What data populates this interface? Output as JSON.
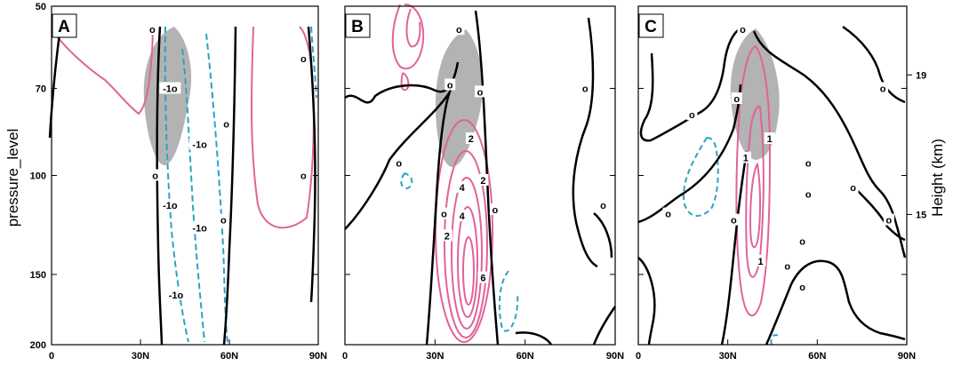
{
  "figure": {
    "ylabel_left": "pressure_level",
    "ylabel_right": "Height (km)"
  },
  "colors": {
    "zero_contour": "#000000",
    "positive_contour": "#e0639a",
    "negative_contour": "#2aa3c6",
    "shading": "#b3b3b3"
  },
  "chart_data": [
    {
      "type": "contour",
      "panel": "A",
      "x_ticks": [
        "0",
        "30N",
        "60N",
        "90N"
      ],
      "x_tick_values": [
        0,
        30,
        60,
        90
      ],
      "y_ticks": [
        "50",
        "70",
        "100",
        "150",
        "200"
      ],
      "y_tick_values": [
        50,
        70,
        100,
        150,
        200
      ],
      "xlim": [
        0,
        90
      ],
      "ylim": [
        200,
        50
      ],
      "y_scale": "log",
      "contour_labels": [
        {
          "text": "o",
          "lat": 34,
          "p": 55
        },
        {
          "text": "-1o",
          "lat": 40,
          "p": 70
        },
        {
          "text": "o",
          "lat": 59,
          "p": 81
        },
        {
          "text": "-1o",
          "lat": 50,
          "p": 88
        },
        {
          "text": "o",
          "lat": 35,
          "p": 100
        },
        {
          "text": "-1o",
          "lat": 40,
          "p": 113
        },
        {
          "text": "-1o",
          "lat": 50,
          "p": 124
        },
        {
          "text": "o",
          "lat": 58,
          "p": 120
        },
        {
          "text": "-1o",
          "lat": 42,
          "p": 163
        },
        {
          "text": "o",
          "lat": 85,
          "p": 62
        },
        {
          "text": "o",
          "lat": 85,
          "p": 100
        }
      ],
      "shading": {
        "lat_range": [
          30,
          46
        ],
        "p_range": [
          55,
          92
        ]
      }
    },
    {
      "type": "contour",
      "panel": "B",
      "x_ticks": [
        "0",
        "30N",
        "60N",
        "90N"
      ],
      "x_tick_values": [
        0,
        30,
        60,
        90
      ],
      "xlim": [
        0,
        90
      ],
      "ylim": [
        200,
        50
      ],
      "y_scale": "log",
      "contour_labels": [
        {
          "text": "o",
          "lat": 38,
          "p": 55
        },
        {
          "text": "o",
          "lat": 35,
          "p": 69
        },
        {
          "text": "o",
          "lat": 45,
          "p": 71
        },
        {
          "text": "2",
          "lat": 42,
          "p": 86
        },
        {
          "text": "o",
          "lat": 18,
          "p": 95
        },
        {
          "text": "4",
          "lat": 39,
          "p": 105
        },
        {
          "text": "2",
          "lat": 46,
          "p": 102
        },
        {
          "text": "o",
          "lat": 33,
          "p": 117
        },
        {
          "text": "4",
          "lat": 39,
          "p": 118
        },
        {
          "text": "o",
          "lat": 50,
          "p": 115
        },
        {
          "text": "2",
          "lat": 34,
          "p": 128
        },
        {
          "text": "6",
          "lat": 46,
          "p": 152
        },
        {
          "text": "o",
          "lat": 80,
          "p": 70
        },
        {
          "text": "o",
          "lat": 86,
          "p": 113
        }
      ],
      "shading": {
        "lat_range": [
          31,
          48
        ],
        "p_range": [
          55,
          92
        ]
      }
    },
    {
      "type": "contour",
      "panel": "C",
      "x_ticks": [
        "0",
        "30N",
        "60N",
        "90N"
      ],
      "x_tick_values": [
        0,
        30,
        60,
        90
      ],
      "xlim": [
        0,
        90
      ],
      "ylim": [
        200,
        50
      ],
      "y_scale": "log",
      "y2_ticks": [
        "19",
        "15"
      ],
      "y2_tick_values": [
        19,
        15
      ],
      "contour_labels": [
        {
          "text": "o",
          "lat": 35,
          "p": 55
        },
        {
          "text": "o",
          "lat": 18,
          "p": 78
        },
        {
          "text": "o",
          "lat": 33,
          "p": 73
        },
        {
          "text": "1",
          "lat": 44,
          "p": 86
        },
        {
          "text": "1",
          "lat": 36,
          "p": 93
        },
        {
          "text": "o",
          "lat": 57,
          "p": 95
        },
        {
          "text": "o",
          "lat": 82,
          "p": 70
        },
        {
          "text": "o",
          "lat": 10,
          "p": 117
        },
        {
          "text": "o",
          "lat": 32,
          "p": 120
        },
        {
          "text": "o",
          "lat": 57,
          "p": 108
        },
        {
          "text": "o",
          "lat": 72,
          "p": 105
        },
        {
          "text": "o",
          "lat": 84,
          "p": 120
        },
        {
          "text": "1",
          "lat": 41,
          "p": 142
        },
        {
          "text": "o",
          "lat": 55,
          "p": 131
        },
        {
          "text": "o",
          "lat": 50,
          "p": 145
        },
        {
          "text": "o",
          "lat": 55,
          "p": 158
        }
      ],
      "shading": {
        "lat_range": [
          30,
          47
        ],
        "p_range": [
          55,
          92
        ]
      }
    }
  ]
}
